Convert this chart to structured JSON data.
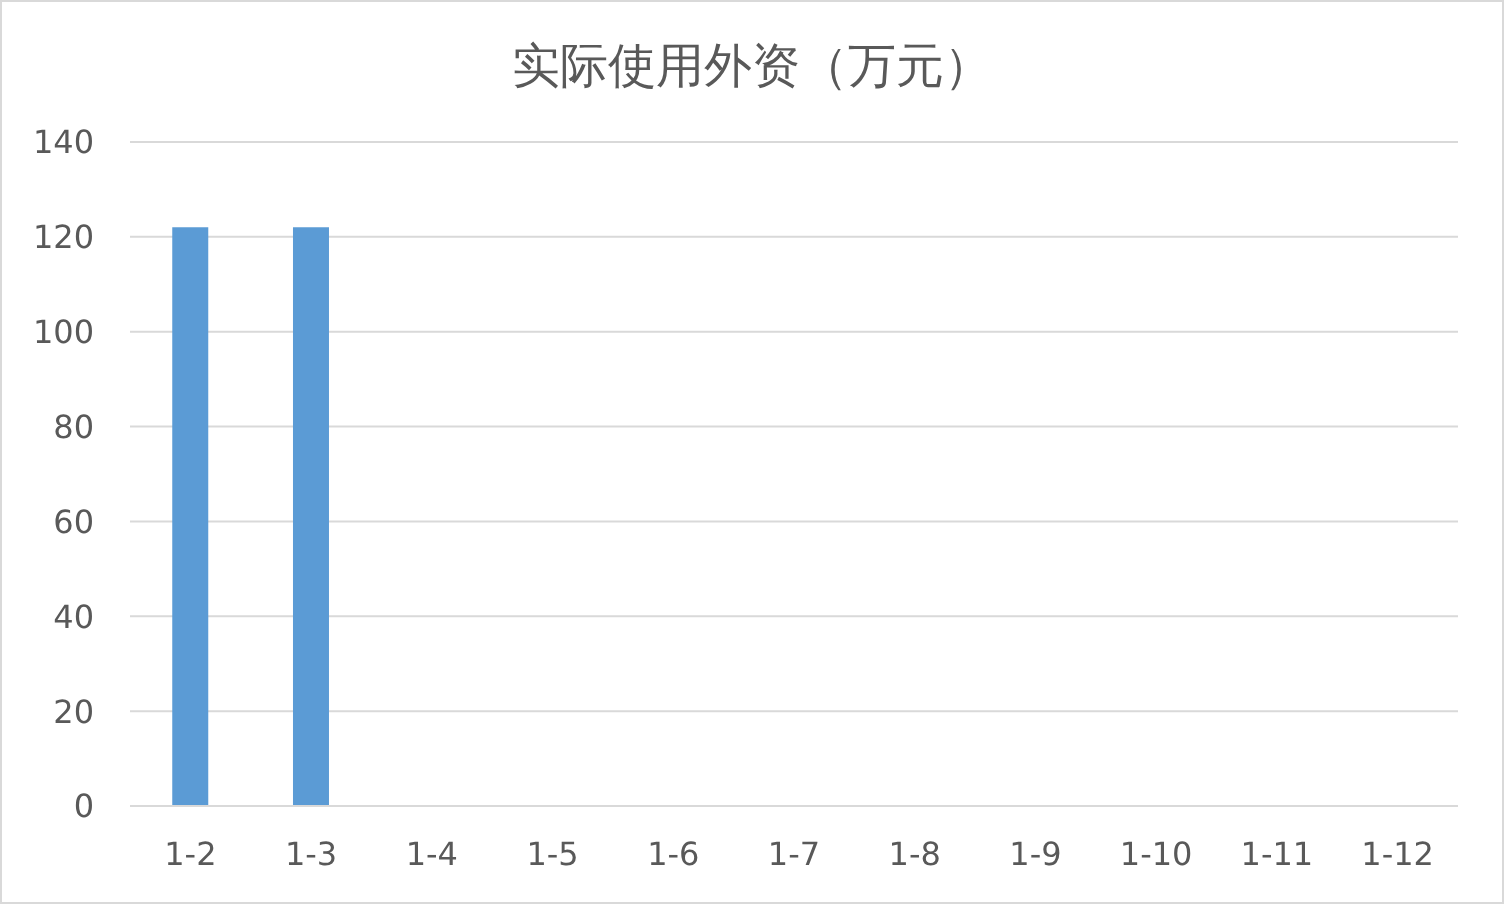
{
  "chart_data": {
    "type": "bar",
    "title": "实际使用外资（万元）",
    "categories": [
      "1-2",
      "1-3",
      "1-4",
      "1-5",
      "1-6",
      "1-7",
      "1-8",
      "1-9",
      "1-10",
      "1-11",
      "1-12"
    ],
    "values": [
      122,
      122,
      0,
      0,
      0,
      0,
      0,
      0,
      0,
      0,
      0
    ],
    "color": "#5b9bd5",
    "ylim": [
      0,
      140
    ],
    "yticks": [
      0,
      20,
      40,
      60,
      80,
      100,
      120,
      140
    ],
    "grid": "y",
    "legend": false
  }
}
